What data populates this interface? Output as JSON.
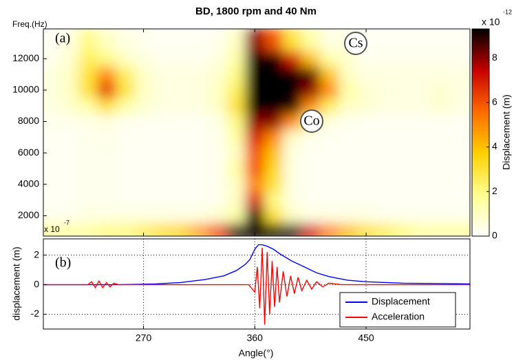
{
  "chart_data": [
    {
      "type": "heatmap",
      "title": "BD, 1800 rpm and 40 Nm",
      "y_label": "Freq.(Hz)",
      "x": [
        195,
        210,
        225,
        240,
        255,
        270,
        285,
        300,
        315,
        330,
        345,
        360,
        375,
        390,
        405,
        420,
        435,
        450,
        465,
        480,
        495,
        510,
        525
      ],
      "y": [
        1000,
        2000,
        3000,
        4000,
        5000,
        6000,
        7000,
        8000,
        9000,
        10000,
        11000,
        12000,
        13000
      ],
      "z": [
        [
          1.5,
          1.5,
          1.5,
          2,
          2,
          2.5,
          3,
          3.5,
          4.5,
          6,
          9,
          9.3,
          9.3,
          9,
          7,
          5,
          4,
          3,
          2.5,
          2,
          1.5,
          1.5,
          1.5
        ],
        [
          0.3,
          0.3,
          0.5,
          0.5,
          0.5,
          0.5,
          0.5,
          0.5,
          0.5,
          0.8,
          1.5,
          9,
          3,
          1,
          0.5,
          0.5,
          0.5,
          0.5,
          0.3,
          0.3,
          0.3,
          0.3,
          0.3
        ],
        [
          0.2,
          0.2,
          0.3,
          0.3,
          0.2,
          0.2,
          0.2,
          0.2,
          0.2,
          0.3,
          1,
          7,
          2,
          0.5,
          0.2,
          0.2,
          0.2,
          0.2,
          0.2,
          0.2,
          0.2,
          0.2,
          0.2
        ],
        [
          0.2,
          0.2,
          0.3,
          0.3,
          0.2,
          0.2,
          0.2,
          0.2,
          0.2,
          0.3,
          1,
          5,
          3,
          0.5,
          0.2,
          0.2,
          0.2,
          0.2,
          0.2,
          0.2,
          0.2,
          0.2,
          0.2
        ],
        [
          0.2,
          0.2,
          0.3,
          0.3,
          0.2,
          0.2,
          0.2,
          0.2,
          0.2,
          0.3,
          1.5,
          6,
          3.5,
          0.5,
          0.2,
          0.2,
          0.2,
          0.2,
          0.2,
          0.2,
          0.2,
          0.2,
          0.2
        ],
        [
          0.2,
          0.2,
          0.3,
          0.3,
          0.2,
          0.2,
          0.2,
          0.2,
          0.2,
          0.3,
          1,
          6,
          4,
          0.5,
          0.2,
          0.2,
          0.2,
          0.2,
          0.2,
          0.2,
          0.2,
          0.2,
          0.2
        ],
        [
          0.2,
          0.2,
          0.3,
          0.4,
          0.2,
          0.2,
          0.2,
          0.2,
          0.2,
          0.3,
          1.5,
          7,
          5,
          1,
          0.3,
          0.2,
          0.2,
          0.2,
          0.2,
          0.2,
          0.2,
          0.2,
          0.2
        ],
        [
          0.3,
          0.3,
          0.4,
          0.5,
          0.3,
          0.2,
          0.2,
          0.2,
          0.2,
          0.4,
          2,
          8,
          8,
          5,
          2,
          0.5,
          0.3,
          0.2,
          0.2,
          0.2,
          0.2,
          0.2,
          0.2
        ],
        [
          0.5,
          0.8,
          1.5,
          3,
          1.5,
          0.8,
          0.5,
          0.5,
          0.5,
          1,
          3,
          9.3,
          9.3,
          9,
          5,
          2.5,
          1,
          0.8,
          0.5,
          0.5,
          0.5,
          0.8,
          0.5
        ],
        [
          0.5,
          1,
          3,
          6.5,
          3,
          1,
          0.5,
          0.5,
          0.5,
          1,
          2.5,
          9.3,
          9.3,
          9.3,
          8,
          5,
          1.5,
          0.8,
          0.5,
          0.5,
          0.5,
          0.8,
          0.5
        ],
        [
          0.5,
          1,
          3,
          5,
          2.5,
          1,
          0.5,
          0.5,
          0.5,
          0.8,
          2,
          9.3,
          9.3,
          9.3,
          8.5,
          4,
          1,
          0.5,
          0.5,
          0.5,
          0.5,
          0.5,
          0.5
        ],
        [
          0.3,
          0.8,
          2.5,
          2,
          1,
          0.5,
          0.3,
          0.3,
          0.3,
          0.5,
          1.5,
          9,
          9.3,
          7,
          4,
          1.5,
          0.8,
          0.3,
          0.3,
          0.3,
          0.3,
          0.3,
          0.3
        ],
        [
          0.2,
          0.5,
          2,
          1,
          0.5,
          0.3,
          0.2,
          0.2,
          0.2,
          0.3,
          1,
          8,
          6,
          3,
          1.5,
          0.5,
          0.5,
          0.2,
          0.2,
          0.2,
          0.2,
          0.2,
          0.2
        ]
      ],
      "xlim": [
        189,
        534
      ],
      "ylim": [
        700,
        13900
      ],
      "yticks": [
        2000,
        4000,
        6000,
        8000,
        10000,
        12000
      ],
      "colormap": [
        "#ffffff",
        "#ffff90",
        "#ffd000",
        "#ff6a00",
        "#c80000",
        "#000000"
      ],
      "colorbar": {
        "label": "Displacement (m)",
        "clim": [
          0,
          9.3
        ],
        "ticks": [
          0,
          2,
          4,
          6,
          8
        ],
        "scale_label": "x 10",
        "scale_exponent": "-12"
      },
      "annotations": [
        "(a)",
        "Cs",
        "Co"
      ]
    },
    {
      "type": "line",
      "x_label": "Angle(°)",
      "y_label": "displacement (m)",
      "scale_label": "x 10",
      "scale_exponent": "-7",
      "annotation": "(b)",
      "series": [
        {
          "name": "Displacement",
          "color": "#0000ff",
          "x": [
            189,
            250,
            280,
            300,
            320,
            335,
            345,
            352,
            356,
            360,
            363,
            366,
            370,
            375,
            380,
            390,
            400,
            410,
            420,
            435,
            450,
            480,
            534
          ],
          "values": [
            0,
            0,
            0.05,
            0.15,
            0.35,
            0.6,
            0.95,
            1.35,
            1.7,
            2.4,
            2.7,
            2.7,
            2.6,
            2.4,
            2.1,
            1.6,
            1.2,
            0.8,
            0.55,
            0.3,
            0.2,
            0.1,
            0.05
          ]
        },
        {
          "name": "Acceleration",
          "color": "#ff0000",
          "x": [
            189,
            225,
            228,
            231,
            234,
            237,
            240,
            243,
            246,
            250,
            355,
            360,
            362,
            364,
            366,
            368,
            370,
            372,
            374,
            376,
            378,
            380,
            383,
            386,
            389,
            392,
            395,
            398,
            402,
            406,
            410,
            415,
            420,
            430,
            534
          ],
          "values": [
            0,
            0,
            0.2,
            -0.2,
            0.25,
            -0.2,
            0.15,
            -0.15,
            0.1,
            0,
            0,
            -0.5,
            1.2,
            -1.6,
            2.5,
            -2.7,
            2.2,
            -2,
            1.6,
            -1.5,
            1.2,
            -1.2,
            0.9,
            -0.8,
            0.6,
            -0.6,
            0.5,
            -0.4,
            0.3,
            -0.3,
            0.2,
            -0.15,
            0.1,
            0,
            0
          ]
        }
      ],
      "xlim": [
        189,
        534
      ],
      "ylim": [
        -3,
        3.1
      ],
      "xticks": [
        270,
        360,
        450
      ],
      "yticks": [
        -2,
        0,
        2
      ],
      "grid": true,
      "legend": "lower right"
    }
  ]
}
